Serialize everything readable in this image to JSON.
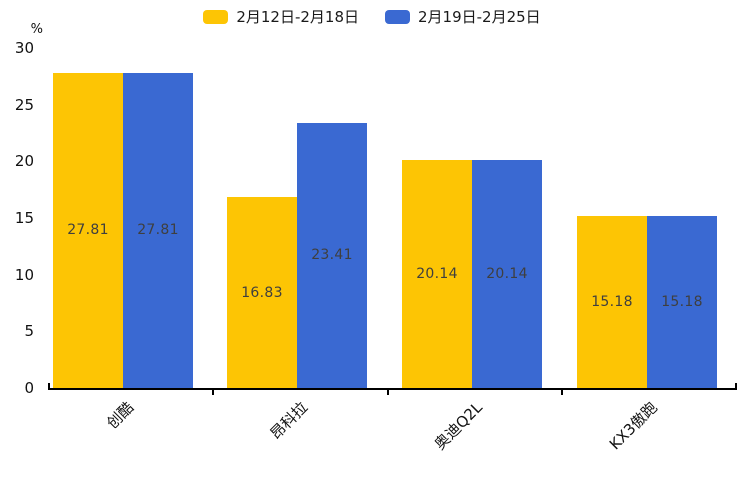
{
  "chart_data": {
    "type": "bar",
    "title": "",
    "unit_label": "%",
    "categories": [
      "创酷",
      "昂科拉",
      "奥迪Q2L",
      "KX3傲跑"
    ],
    "series": [
      {
        "name": "2月12日-2月18日",
        "color": "#FDC504",
        "values": [
          27.81,
          16.83,
          20.14,
          15.18
        ]
      },
      {
        "name": "2月19日-2月25日",
        "color": "#3A69D2",
        "values": [
          27.81,
          23.41,
          20.14,
          15.18
        ]
      }
    ],
    "ylim": [
      0,
      30
    ],
    "yticks": [
      0,
      5,
      10,
      15,
      20,
      25,
      30
    ],
    "legend_position": "top",
    "grid": false,
    "value_labels_shown": true,
    "value_label_color": "#3F3F3F",
    "axis_color": "#000000",
    "background_color": "#FFFFFF"
  }
}
